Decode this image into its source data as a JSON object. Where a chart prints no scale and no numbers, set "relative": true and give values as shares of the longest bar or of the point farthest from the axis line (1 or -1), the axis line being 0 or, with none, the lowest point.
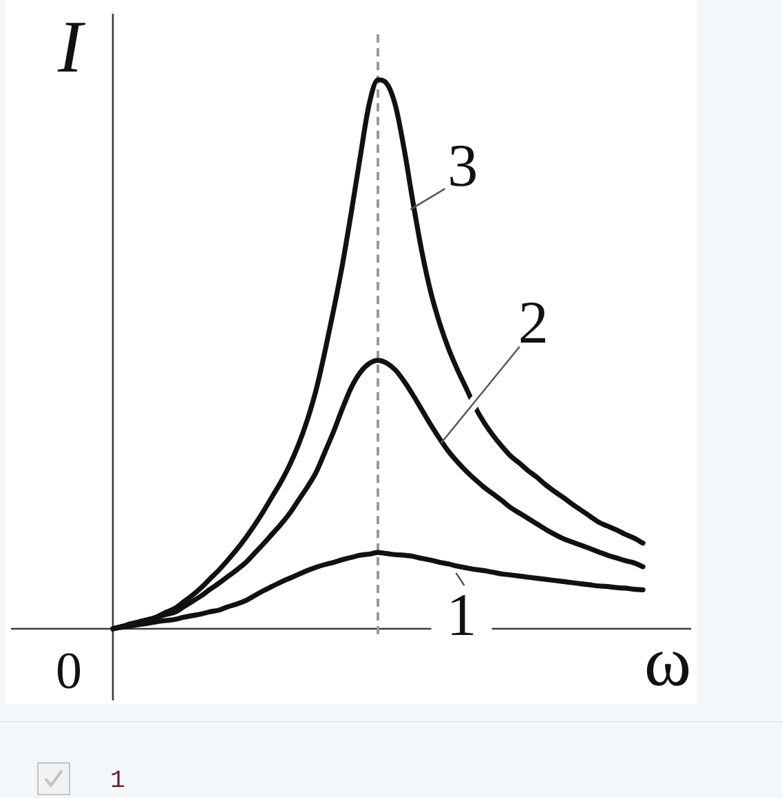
{
  "chart_data": {
    "type": "line",
    "relative": true,
    "xlabel": "ω",
    "ylabel": "I",
    "marker": "none",
    "line_style": "solid",
    "categories": [
      null,
      null,
      null,
      null,
      null,
      null,
      null,
      null,
      null,
      null,
      null,
      null,
      null,
      null,
      null,
      null,
      null,
      null,
      null,
      null,
      null,
      null,
      null,
      null,
      null,
      null,
      null,
      null,
      null,
      null,
      null,
      null,
      null,
      null,
      null,
      null,
      null,
      null,
      null,
      null,
      null,
      null,
      null,
      null,
      null,
      null,
      null,
      null,
      null,
      null,
      null,
      null,
      null,
      null,
      null,
      null,
      null,
      null,
      null,
      null,
      null
    ],
    "series": [
      {
        "name": "1",
        "color": "#111111",
        "values": [
          0,
          0.003,
          0.005,
          0.008,
          0.01,
          0.013,
          0.015,
          0.017,
          0.021,
          0.024,
          0.027,
          0.031,
          0.034,
          0.04,
          0.045,
          0.051,
          0.06,
          0.069,
          0.077,
          0.085,
          0.092,
          0.099,
          0.106,
          0.112,
          0.117,
          0.121,
          0.126,
          0.13,
          0.134,
          0.136,
          0.139,
          0.137,
          0.135,
          0.134,
          0.132,
          0.128,
          0.125,
          0.121,
          0.118,
          0.114,
          0.111,
          0.108,
          0.106,
          0.103,
          0.1,
          0.098,
          0.096,
          0.094,
          0.092,
          0.09,
          0.088,
          0.086,
          0.084,
          0.082,
          0.08,
          0.078,
          0.077,
          0.075,
          0.074,
          0.072,
          0.071
        ]
      },
      {
        "name": "2",
        "color": "#111111",
        "values": [
          0,
          0.004,
          0.009,
          0.013,
          0.017,
          0.021,
          0.026,
          0.03,
          0.04,
          0.05,
          0.06,
          0.072,
          0.083,
          0.095,
          0.107,
          0.12,
          0.137,
          0.154,
          0.172,
          0.19,
          0.21,
          0.234,
          0.258,
          0.285,
          0.322,
          0.36,
          0.402,
          0.44,
          0.467,
          0.483,
          0.489,
          0.484,
          0.471,
          0.45,
          0.425,
          0.398,
          0.371,
          0.346,
          0.323,
          0.304,
          0.287,
          0.272,
          0.258,
          0.246,
          0.234,
          0.221,
          0.211,
          0.201,
          0.191,
          0.181,
          0.172,
          0.164,
          0.158,
          0.152,
          0.146,
          0.14,
          0.134,
          0.129,
          0.124,
          0.12,
          0.113
        ]
      },
      {
        "name": "3",
        "color": "#111111",
        "values": [
          0,
          0.004,
          0.008,
          0.012,
          0.016,
          0.022,
          0.03,
          0.037,
          0.049,
          0.061,
          0.075,
          0.091,
          0.107,
          0.125,
          0.144,
          0.165,
          0.188,
          0.213,
          0.24,
          0.267,
          0.298,
          0.335,
          0.38,
          0.435,
          0.505,
          0.582,
          0.665,
          0.76,
          0.86,
          0.955,
          1,
          0.993,
          0.952,
          0.871,
          0.774,
          0.685,
          0.612,
          0.556,
          0.51,
          0.472,
          0.438,
          0.404,
          0.376,
          0.353,
          0.333,
          0.315,
          0.302,
          0.288,
          0.276,
          0.262,
          0.25,
          0.239,
          0.227,
          0.216,
          0.205,
          0.194,
          0.187,
          0.18,
          0.172,
          0.165,
          0.156
        ]
      }
    ],
    "annotations": [
      "0",
      "1"
    ]
  }
}
